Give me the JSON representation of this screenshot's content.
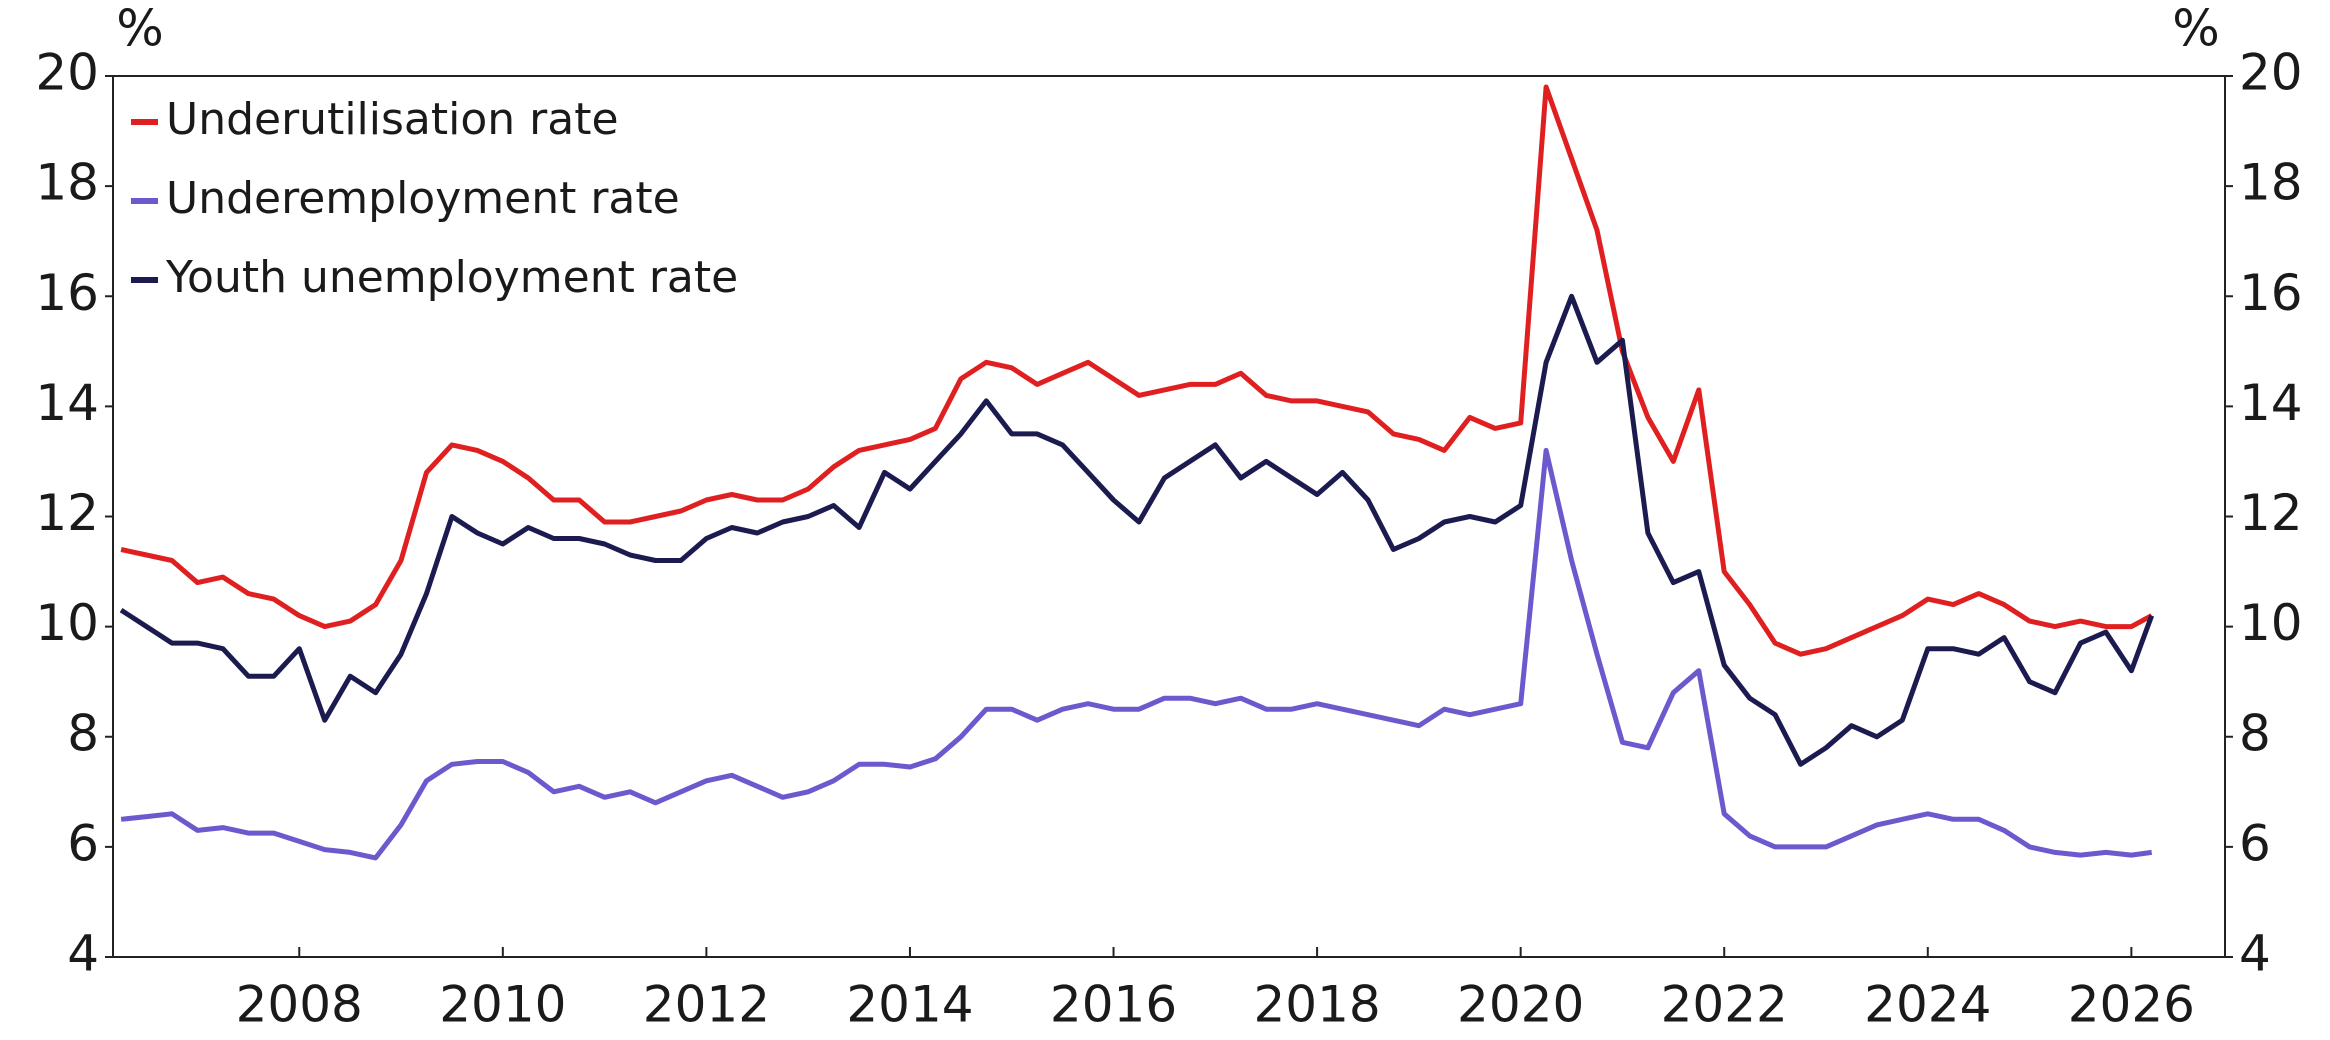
{
  "chart_data": {
    "type": "line",
    "y_label": "%",
    "y2_label": "%",
    "x": [
      2006.25,
      2006.5,
      2006.75,
      2007.0,
      2007.25,
      2007.5,
      2007.75,
      2008.0,
      2008.25,
      2008.5,
      2008.75,
      2009.0,
      2009.25,
      2009.5,
      2009.75,
      2010.0,
      2010.25,
      2010.5,
      2010.75,
      2011.0,
      2011.25,
      2011.5,
      2011.75,
      2012.0,
      2012.25,
      2012.5,
      2012.75,
      2013.0,
      2013.25,
      2013.5,
      2013.75,
      2014.0,
      2014.25,
      2014.5,
      2014.75,
      2015.0,
      2015.25,
      2015.5,
      2015.75,
      2016.0,
      2016.25,
      2016.5,
      2016.75,
      2017.0,
      2017.25,
      2017.5,
      2017.75,
      2018.0,
      2018.25,
      2018.5,
      2018.75,
      2019.0,
      2019.25,
      2019.5,
      2019.75,
      2020.0,
      2020.25,
      2020.5,
      2020.75,
      2021.0,
      2021.25,
      2021.5,
      2021.75,
      2022.0,
      2022.25,
      2022.5,
      2022.75,
      2023.0,
      2023.25,
      2023.5,
      2023.75,
      2024.0,
      2024.25,
      2024.5,
      2024.75,
      2025.0,
      2025.25,
      2025.5,
      2025.75,
      2026.0,
      2026.2
    ],
    "series": [
      {
        "name": "Underutilisation rate",
        "color": "#e02020",
        "values": [
          11.4,
          11.3,
          11.2,
          10.8,
          10.9,
          10.6,
          10.5,
          10.2,
          10.0,
          10.1,
          10.4,
          11.2,
          12.8,
          13.3,
          13.2,
          13.0,
          12.7,
          12.3,
          12.3,
          11.9,
          11.9,
          12.0,
          12.1,
          12.3,
          12.4,
          12.3,
          12.3,
          12.5,
          12.9,
          13.2,
          13.3,
          13.4,
          13.6,
          14.5,
          14.8,
          14.7,
          14.4,
          14.6,
          14.8,
          14.5,
          14.2,
          14.3,
          14.4,
          14.4,
          14.6,
          14.2,
          14.1,
          14.1,
          14.0,
          13.9,
          13.5,
          13.4,
          13.2,
          13.8,
          13.6,
          13.7,
          19.8,
          18.5,
          17.2,
          15.0,
          13.8,
          13.0,
          14.3,
          11.0,
          10.4,
          9.7,
          9.5,
          9.6,
          9.8,
          10.0,
          10.2,
          10.5,
          10.4,
          10.6,
          10.4,
          10.1,
          10.0,
          10.1,
          10.0,
          10.0,
          10.2
        ]
      },
      {
        "name": "Underemployment rate",
        "color": "#6a5acd",
        "values": [
          6.5,
          6.55,
          6.6,
          6.3,
          6.35,
          6.25,
          6.25,
          6.1,
          5.95,
          5.9,
          5.8,
          6.4,
          7.2,
          7.5,
          7.55,
          7.55,
          7.35,
          7.0,
          7.1,
          6.9,
          7.0,
          6.8,
          7.0,
          7.2,
          7.3,
          7.1,
          6.9,
          7.0,
          7.2,
          7.5,
          7.5,
          7.45,
          7.6,
          8.0,
          8.5,
          8.5,
          8.3,
          8.5,
          8.6,
          8.5,
          8.5,
          8.7,
          8.7,
          8.6,
          8.7,
          8.5,
          8.5,
          8.6,
          8.5,
          8.4,
          8.3,
          8.2,
          8.5,
          8.4,
          8.5,
          8.6,
          13.2,
          11.2,
          9.5,
          7.9,
          7.8,
          8.8,
          9.2,
          6.6,
          6.2,
          6.0,
          6.0,
          6.0,
          6.2,
          6.4,
          6.5,
          6.6,
          6.5,
          6.5,
          6.3,
          6.0,
          5.9,
          5.85,
          5.9,
          5.85,
          5.9
        ]
      },
      {
        "name": "Youth unemployment rate",
        "color": "#1b1b4f",
        "values": [
          10.3,
          10.0,
          9.7,
          9.7,
          9.6,
          9.1,
          9.1,
          9.6,
          8.3,
          9.1,
          8.8,
          9.5,
          10.6,
          12.0,
          11.7,
          11.5,
          11.8,
          11.6,
          11.6,
          11.5,
          11.3,
          11.2,
          11.2,
          11.6,
          11.8,
          11.7,
          11.9,
          12.0,
          12.2,
          11.8,
          12.8,
          12.5,
          13.0,
          13.5,
          14.1,
          13.5,
          13.5,
          13.3,
          12.8,
          12.3,
          11.9,
          12.7,
          13.0,
          13.3,
          12.7,
          13.0,
          12.7,
          12.4,
          12.8,
          12.3,
          11.4,
          11.6,
          11.9,
          12.0,
          11.9,
          12.2,
          14.8,
          16.0,
          14.8,
          15.2,
          11.7,
          10.8,
          11.0,
          9.3,
          8.7,
          8.4,
          7.5,
          7.8,
          8.2,
          8.0,
          8.3,
          9.6,
          9.6,
          9.5,
          9.8,
          9.0,
          8.8,
          9.7,
          9.9,
          9.2,
          10.2
        ]
      }
    ],
    "xlim": [
      2006.17,
      2026.92
    ],
    "xticks": [
      2008,
      2010,
      2012,
      2014,
      2016,
      2018,
      2020,
      2022,
      2024,
      2026
    ],
    "ylim": [
      4,
      20
    ],
    "yticks": [
      4,
      6,
      8,
      10,
      12,
      14,
      16,
      18,
      20
    ],
    "y2lim": [
      4,
      20
    ],
    "y2ticks": [
      4,
      6,
      8,
      10,
      12,
      14,
      16,
      18,
      20
    ],
    "legend": "upper left"
  }
}
